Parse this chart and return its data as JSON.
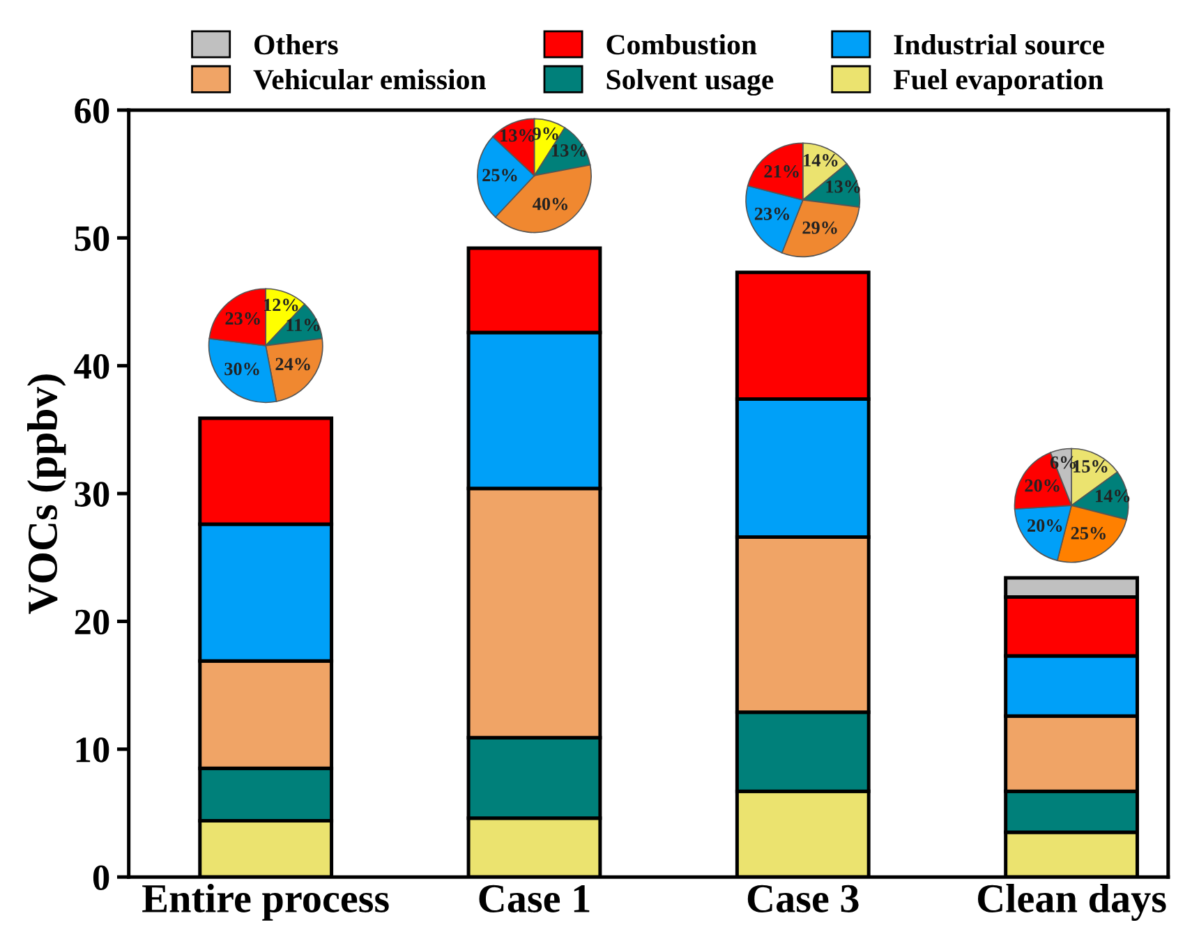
{
  "chart_data": [
    {
      "type": "bar",
      "stacked": true,
      "ylabel": "VOCs (ppbv)",
      "categories": [
        "Entire process",
        "Case 1",
        "Case 3",
        "Clean days"
      ],
      "ylim": [
        0,
        60
      ],
      "yticks": [
        0,
        10,
        20,
        30,
        40,
        50,
        60
      ],
      "grid": false,
      "legend": "top",
      "series": [
        {
          "name": "Fuel evaporation",
          "color": "#ebe36f",
          "values": [
            4.4,
            4.6,
            6.7,
            3.5
          ]
        },
        {
          "name": "Solvent usage",
          "color": "#00807a",
          "values": [
            4.1,
            6.3,
            6.2,
            3.2
          ]
        },
        {
          "name": "Vehicular emission",
          "color": "#f0a466",
          "values": [
            8.4,
            19.5,
            13.7,
            5.9
          ]
        },
        {
          "name": "Industrial source",
          "color": "#00a0f8",
          "values": [
            10.7,
            12.2,
            10.8,
            4.7
          ]
        },
        {
          "name": "Combustion",
          "color": "#ff0000",
          "values": [
            8.3,
            6.6,
            9.9,
            4.6
          ]
        },
        {
          "name": "Others",
          "color": "#c0c0c0",
          "values": [
            null,
            null,
            null,
            1.5
          ]
        }
      ]
    },
    {
      "type": "pie",
      "categories": [
        null,
        null,
        null,
        null,
        null
      ],
      "values": [
        12,
        11,
        24,
        30,
        23
      ],
      "value_labels": [
        "12%",
        "11%",
        "24%",
        "30%",
        "23%"
      ],
      "colors": [
        "#ffff00",
        "#00807a",
        "#f08830",
        "#00a0f8",
        "#ff0000"
      ]
    },
    {
      "type": "pie",
      "categories": [
        null,
        null,
        null,
        null,
        null
      ],
      "values": [
        9,
        13,
        40,
        25,
        13
      ],
      "value_labels": [
        "9%",
        "13%",
        "40%",
        "25%",
        "13%"
      ],
      "colors": [
        "#ffff00",
        "#00807a",
        "#f08830",
        "#00a0f8",
        "#ff0000"
      ]
    },
    {
      "type": "pie",
      "categories": [
        null,
        null,
        null,
        null,
        null
      ],
      "values": [
        14,
        13,
        29,
        23,
        21
      ],
      "value_labels": [
        "14%",
        "13%",
        "29%",
        "23%",
        "21%"
      ],
      "colors": [
        "#ebe36f",
        "#00807a",
        "#f08830",
        "#00a0f8",
        "#ff0000"
      ]
    },
    {
      "type": "pie",
      "categories": [
        null,
        null,
        null,
        null,
        null,
        null
      ],
      "values": [
        15,
        14,
        25,
        20,
        20,
        6
      ],
      "value_labels": [
        "15%",
        "14%",
        "25%",
        "20%",
        "20%",
        "6%"
      ],
      "colors": [
        "#ebe36f",
        "#00807a",
        "#ff8000",
        "#00a0f8",
        "#ff0000",
        "#c0c0c0"
      ]
    }
  ]
}
